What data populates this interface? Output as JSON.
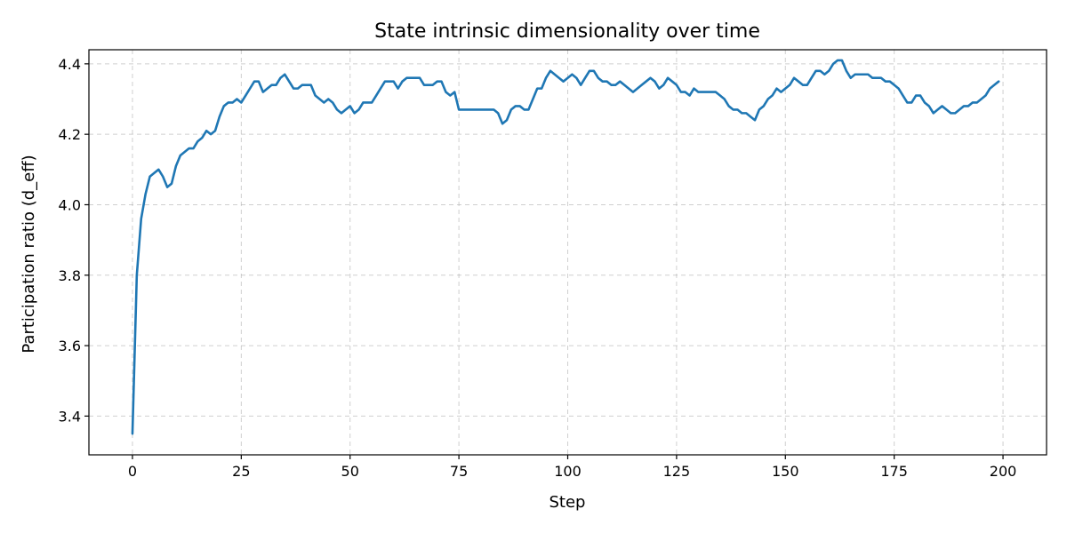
{
  "chart_data": {
    "type": "line",
    "title": "State intrinsic dimensionality over time",
    "xlabel": "Step",
    "ylabel": "Participation ratio (d_eff)",
    "xlim": [
      -10,
      210
    ],
    "ylim": [
      3.29,
      4.44
    ],
    "xticks": [
      0,
      25,
      50,
      75,
      100,
      125,
      150,
      175,
      200
    ],
    "yticks": [
      3.4,
      3.6,
      3.8,
      4.0,
      4.2,
      4.4
    ],
    "xtick_labels": [
      "0",
      "25",
      "50",
      "75",
      "100",
      "125",
      "150",
      "175",
      "200"
    ],
    "ytick_labels": [
      "3.4",
      "3.6",
      "3.8",
      "4.0",
      "4.2",
      "4.4"
    ],
    "grid": true,
    "colors": {
      "line": "#1f77b4"
    },
    "series": [
      {
        "x_start": 0,
        "x_step": 1,
        "values": [
          3.35,
          3.8,
          3.96,
          4.03,
          4.08,
          4.09,
          4.1,
          4.08,
          4.05,
          4.06,
          4.11,
          4.14,
          4.15,
          4.16,
          4.16,
          4.18,
          4.19,
          4.21,
          4.2,
          4.21,
          4.25,
          4.28,
          4.29,
          4.29,
          4.3,
          4.29,
          4.31,
          4.33,
          4.35,
          4.35,
          4.32,
          4.33,
          4.34,
          4.34,
          4.36,
          4.37,
          4.35,
          4.33,
          4.33,
          4.34,
          4.34,
          4.34,
          4.31,
          4.3,
          4.29,
          4.3,
          4.29,
          4.27,
          4.26,
          4.27,
          4.28,
          4.26,
          4.27,
          4.29,
          4.29,
          4.29,
          4.31,
          4.33,
          4.35,
          4.35,
          4.35,
          4.33,
          4.35,
          4.36,
          4.36,
          4.36,
          4.36,
          4.34,
          4.34,
          4.34,
          4.35,
          4.35,
          4.32,
          4.31,
          4.32,
          4.27,
          4.27,
          4.27,
          4.27,
          4.27,
          4.27,
          4.27,
          4.27,
          4.27,
          4.26,
          4.23,
          4.24,
          4.27,
          4.28,
          4.28,
          4.27,
          4.27,
          4.3,
          4.33,
          4.33,
          4.36,
          4.38,
          4.37,
          4.36,
          4.35,
          4.36,
          4.37,
          4.36,
          4.34,
          4.36,
          4.38,
          4.38,
          4.36,
          4.35,
          4.35,
          4.34,
          4.34,
          4.35,
          4.34,
          4.33,
          4.32,
          4.33,
          4.34,
          4.35,
          4.36,
          4.35,
          4.33,
          4.34,
          4.36,
          4.35,
          4.34,
          4.32,
          4.32,
          4.31,
          4.33,
          4.32,
          4.32,
          4.32,
          4.32,
          4.32,
          4.31,
          4.3,
          4.28,
          4.27,
          4.27,
          4.26,
          4.26,
          4.25,
          4.24,
          4.27,
          4.28,
          4.3,
          4.31,
          4.33,
          4.32,
          4.33,
          4.34,
          4.36,
          4.35,
          4.34,
          4.34,
          4.36,
          4.38,
          4.38,
          4.37,
          4.38,
          4.4,
          4.41,
          4.41,
          4.38,
          4.36,
          4.37,
          4.37,
          4.37,
          4.37,
          4.36,
          4.36,
          4.36,
          4.35,
          4.35,
          4.34,
          4.33,
          4.31,
          4.29,
          4.29,
          4.31,
          4.31,
          4.29,
          4.28,
          4.26,
          4.27,
          4.28,
          4.27,
          4.26,
          4.26,
          4.27,
          4.28,
          4.28,
          4.29,
          4.29,
          4.3,
          4.31,
          4.33,
          4.34,
          4.35
        ]
      }
    ]
  }
}
